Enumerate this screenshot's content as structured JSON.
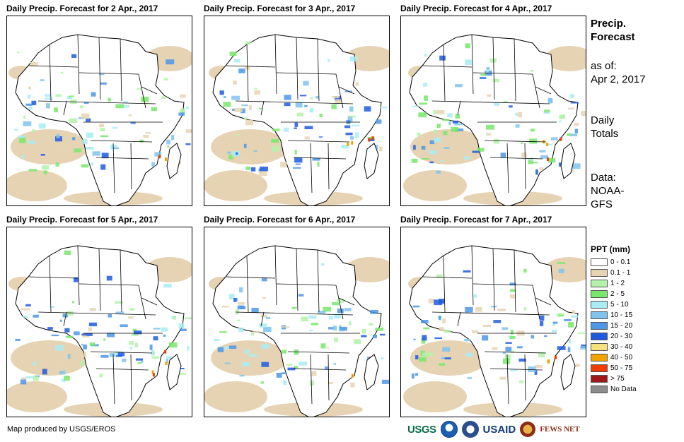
{
  "panels": [
    {
      "title": "Daily Precip. Forecast for 2 Apr., 2017"
    },
    {
      "title": "Daily Precip. Forecast for 3 Apr., 2017"
    },
    {
      "title": "Daily Precip. Forecast for 4 Apr., 2017"
    },
    {
      "title": "Daily Precip. Forecast for 5 Apr., 2017"
    },
    {
      "title": "Daily Precip. Forecast for 6 Apr., 2017"
    },
    {
      "title": "Daily Precip. Forecast for 7 Apr., 2017"
    }
  ],
  "sidebar": {
    "heading_line1": "Precip.",
    "heading_line2": "Forecast",
    "asof_line1": "as of:",
    "asof_line2": "Apr 2, 2017",
    "totals_line1": "Daily",
    "totals_line2": "Totals",
    "data_line1": "Data:",
    "data_line2": "NOAA-",
    "data_line3": "GFS"
  },
  "legend": {
    "title": "PPT (mm)",
    "items": [
      {
        "label": "0 - 0.1",
        "color": "#ffffff"
      },
      {
        "label": "0.1 - 1",
        "color": "#e6d3b3"
      },
      {
        "label": "1 - 2",
        "color": "#b3f2a8"
      },
      {
        "label": "2 - 5",
        "color": "#78e86a"
      },
      {
        "label": "5 - 10",
        "color": "#a8ecf4"
      },
      {
        "label": "10 - 15",
        "color": "#7fc3ef"
      },
      {
        "label": "15 - 20",
        "color": "#4c97e8"
      },
      {
        "label": "20 - 30",
        "color": "#1e5ae0"
      },
      {
        "label": "30 - 40",
        "color": "#f7e07e"
      },
      {
        "label": "40 - 50",
        "color": "#f2a300"
      },
      {
        "label": "50 - 75",
        "color": "#f03c00"
      },
      {
        "label": "> 75",
        "color": "#a01818"
      },
      {
        "label": "No Data",
        "color": "#8c8c8c"
      }
    ]
  },
  "credit": "Map produced by USGS/EROS",
  "logos": {
    "usgs": "USGS",
    "usaid": "USAID",
    "fews": "FEWS NET"
  }
}
